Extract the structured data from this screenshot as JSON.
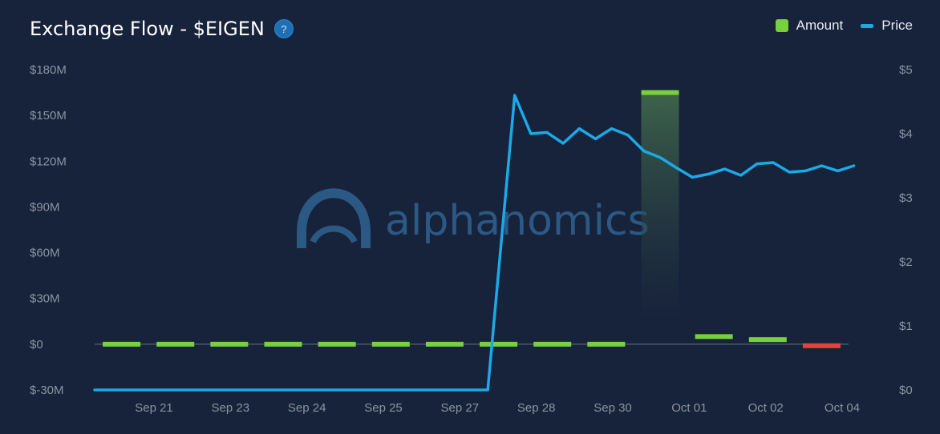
{
  "header": {
    "title": "Exchange Flow - $EIGEN",
    "help_glyph": "?"
  },
  "watermark": {
    "text": "alphanomics",
    "icon": "alphanomics-logo-icon"
  },
  "colors": {
    "background": "#17223b",
    "amount_positive": "#76d13c",
    "amount_negative": "#e8413b",
    "price_line": "#1ba9e7",
    "highlight_band": "#3f6b45"
  },
  "chart_data": {
    "type": "bar",
    "title": "Exchange Flow - $EIGEN",
    "legend_position": "top-right",
    "grid": false,
    "x_tick_labels": [
      "Sep 21",
      "Sep 23",
      "Sep 24",
      "Sep 25",
      "Sep 27",
      "Sep 28",
      "Sep 30",
      "Oct 01",
      "Oct 02",
      "Oct 04"
    ],
    "y_left": {
      "ticks": [
        180,
        150,
        120,
        90,
        60,
        30,
        0,
        -30
      ],
      "tick_labels": [
        "$180M",
        "$150M",
        "$120M",
        "$90M",
        "$60M",
        "$30M",
        "$0",
        "$-30M"
      ],
      "range": [
        -30,
        180
      ],
      "unit": "$M"
    },
    "y_right": {
      "ticks": [
        5,
        4,
        3,
        2,
        1,
        0
      ],
      "tick_labels": [
        "$5",
        "$4",
        "$3",
        "$2",
        "$1",
        "$0"
      ],
      "range": [
        0,
        5
      ],
      "unit": "$"
    },
    "series": [
      {
        "name": "Amount",
        "type": "bar",
        "axis": "left",
        "x_index": [
          0,
          1,
          2,
          3,
          4,
          5,
          6,
          7,
          8,
          9,
          10,
          11,
          12,
          13
        ],
        "values": [
          0,
          0,
          0,
          0,
          0,
          0,
          0,
          0,
          0,
          0,
          165,
          5,
          3,
          -1
        ]
      },
      {
        "name": "Price",
        "type": "line",
        "axis": "right",
        "x_index": [
          0,
          6.8,
          7.3,
          7.6,
          7.9,
          8.2,
          8.5,
          8.8,
          9.1,
          9.4,
          9.7,
          10.0,
          10.3,
          10.6,
          10.9,
          11.2,
          11.5,
          11.8,
          12.1,
          12.4,
          12.7,
          13.0,
          13.3,
          13.6
        ],
        "values": [
          0,
          0,
          4.6,
          4.0,
          4.02,
          3.85,
          4.08,
          3.92,
          4.08,
          3.98,
          3.73,
          3.63,
          3.47,
          3.32,
          3.37,
          3.45,
          3.35,
          3.53,
          3.55,
          3.4,
          3.42,
          3.5,
          3.42,
          3.5
        ]
      }
    ],
    "highlight_index": 10
  }
}
